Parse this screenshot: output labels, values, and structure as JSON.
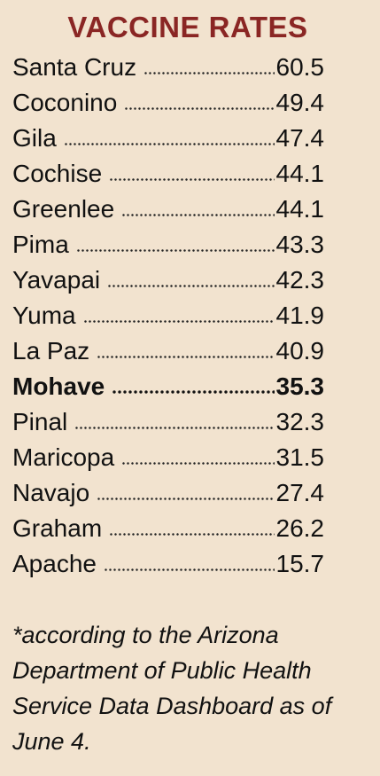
{
  "title": "VACCINE RATES",
  "rows": [
    {
      "name": "Santa Cruz",
      "value": "60.5"
    },
    {
      "name": "Coconino",
      "value": "49.4"
    },
    {
      "name": "Gila",
      "value": "47.4"
    },
    {
      "name": "Cochise",
      "value": "44.1"
    },
    {
      "name": "Greenlee",
      "value": "44.1"
    },
    {
      "name": "Pima",
      "value": "43.3"
    },
    {
      "name": "Yavapai",
      "value": "42.3"
    },
    {
      "name": "Yuma",
      "value": "41.9"
    },
    {
      "name": "La Paz",
      "value": "40.9"
    },
    {
      "name": "Mohave",
      "value": "35.3"
    },
    {
      "name": "Pinal",
      "value": "32.3"
    },
    {
      "name": "Maricopa",
      "value": "31.5"
    },
    {
      "name": "Navajo",
      "value": "27.4"
    },
    {
      "name": "Graham",
      "value": "26.2"
    },
    {
      "name": "Apache",
      "value": "15.7"
    }
  ],
  "footnote": "*according to the Arizona Department of Public Health Service Data Dashboard as of June 4."
}
